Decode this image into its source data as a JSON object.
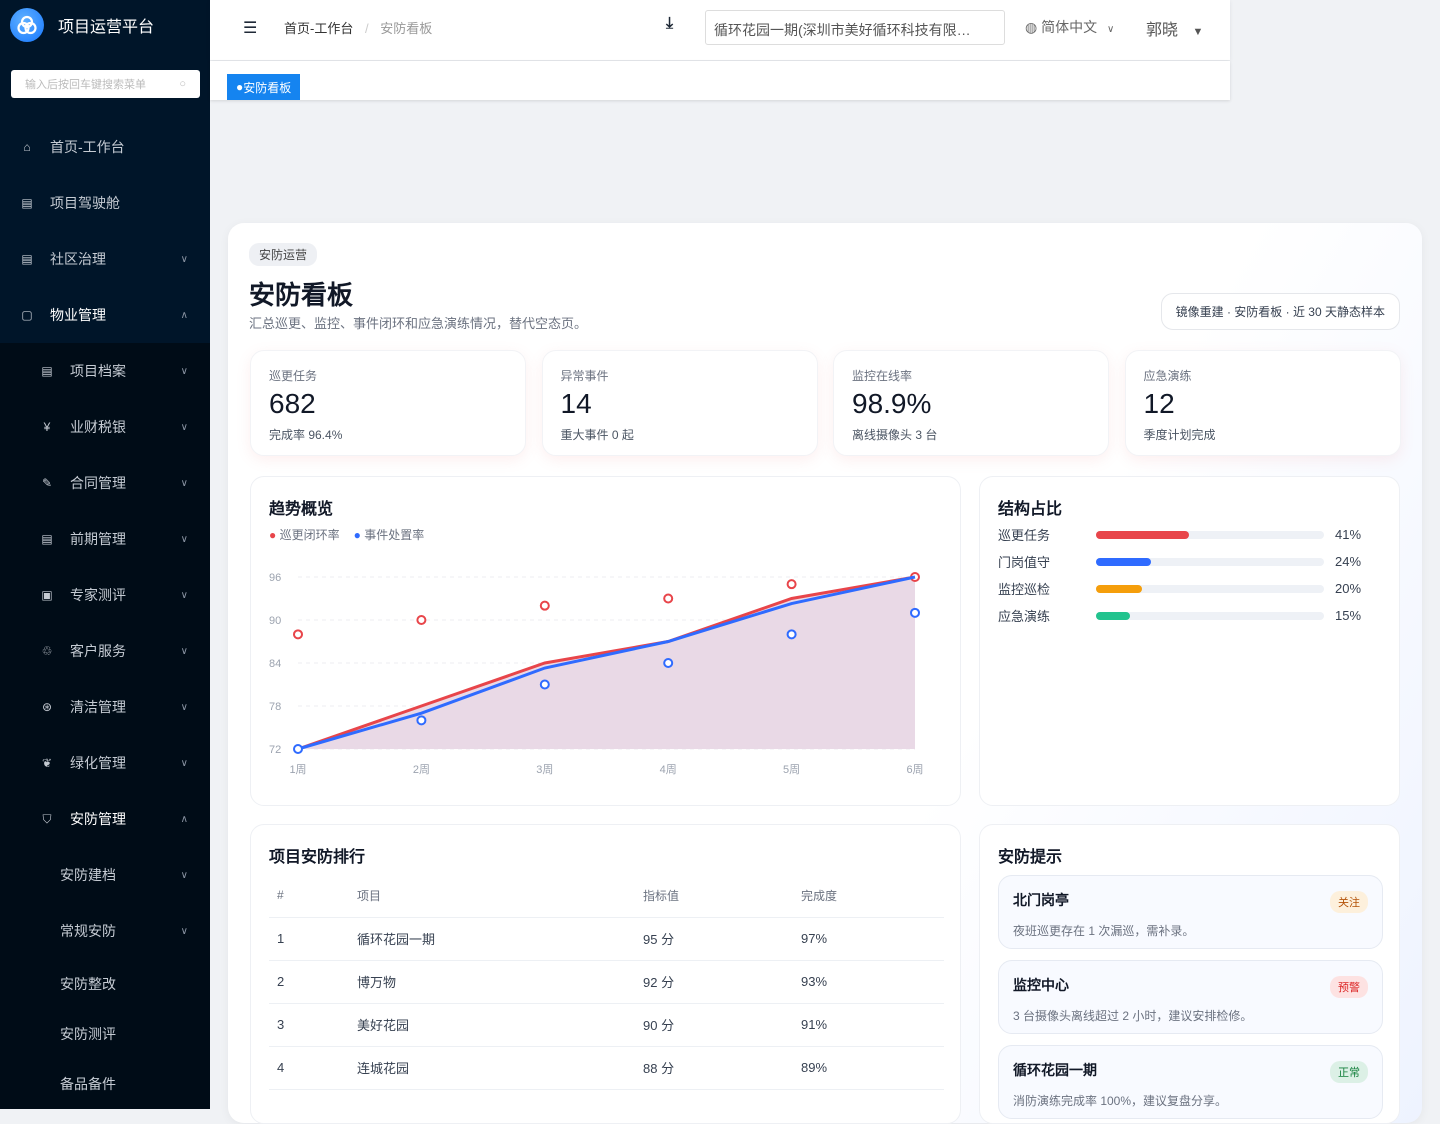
{
  "app": {
    "title": "项目运营平台",
    "search_placeholder": "输入后按回车键搜索菜单"
  },
  "sidebar": {
    "items": [
      {
        "label": "首页-工作台",
        "icon": "home-icon"
      },
      {
        "label": "项目驾驶舱",
        "icon": "dashboard-icon"
      },
      {
        "label": "社区治理",
        "icon": "dashboard-icon",
        "chevron": "down"
      },
      {
        "label": "物业管理",
        "icon": "property-icon",
        "chevron": "up"
      }
    ],
    "sub_items": [
      {
        "label": "项目档案",
        "icon": "file-icon"
      },
      {
        "label": "业财税银",
        "icon": "yuan-icon"
      },
      {
        "label": "合同管理",
        "icon": "contract-icon"
      },
      {
        "label": "前期管理",
        "icon": "file-icon"
      },
      {
        "label": "专家测评",
        "icon": "clipboard-icon"
      },
      {
        "label": "客户服务",
        "icon": "service-icon"
      },
      {
        "label": "清洁管理",
        "icon": "clean-icon"
      },
      {
        "label": "绿化管理",
        "icon": "leaf-icon"
      },
      {
        "label": "安防管理",
        "icon": "shield-icon"
      }
    ],
    "security_items": [
      {
        "label": "安防建档",
        "chevron": true
      },
      {
        "label": "常规安防",
        "chevron": true
      },
      {
        "label": "安防整改"
      },
      {
        "label": "安防测评"
      },
      {
        "label": "备品备件"
      }
    ]
  },
  "header": {
    "breadcrumb": [
      "首页-工作台",
      "安防看板"
    ],
    "project": "循环花园一期(深圳市美好循环科技有限…",
    "language": "简体中文",
    "user": "郭晓"
  },
  "tags": [
    {
      "label": "安防看板"
    }
  ],
  "page": {
    "badge": "安防运营",
    "title": "安防看板",
    "subtitle": "汇总巡更、监控、事件闭环和应急演练情况，替代空态页。",
    "note": "镜像重建 · 安防看板 · 近 30 天静态样本"
  },
  "kpis": [
    {
      "label": "巡更任务",
      "value": "682",
      "sub": "完成率 96.4%"
    },
    {
      "label": "异常事件",
      "value": "14",
      "sub": "重大事件 0 起"
    },
    {
      "label": "监控在线率",
      "value": "98.9%",
      "sub": "离线摄像头 3 台"
    },
    {
      "label": "应急演练",
      "value": "12",
      "sub": "季度计划完成"
    }
  ],
  "chart_data": {
    "type": "line",
    "title": "趋势概览",
    "categories": [
      "1周",
      "2周",
      "3周",
      "4周",
      "5周",
      "6周"
    ],
    "yticks": [
      72,
      78,
      84,
      90,
      96
    ],
    "ylim": [
      72,
      96
    ],
    "grid": true,
    "legend": "top-left",
    "series": [
      {
        "name": "巡更闭环率",
        "color": "#e8454a",
        "line": [
          72,
          78,
          84,
          87,
          93,
          96
        ],
        "points": [
          88,
          90,
          92,
          93,
          95,
          96
        ]
      },
      {
        "name": "事件处置率",
        "color": "#2f6bff",
        "line": [
          72,
          77,
          83.3,
          87,
          92.3,
          96
        ],
        "points": [
          72,
          76,
          81,
          84,
          88,
          91
        ]
      }
    ]
  },
  "structure": {
    "title": "结构占比",
    "items": [
      {
        "label": "巡更任务",
        "pct": "41%",
        "value": 41,
        "color": "#e8454a"
      },
      {
        "label": "门岗值守",
        "pct": "24%",
        "value": 24,
        "color": "#2f6bff"
      },
      {
        "label": "监控巡检",
        "pct": "20%",
        "value": 20,
        "color": "#f59e0b"
      },
      {
        "label": "应急演练",
        "pct": "15%",
        "value": 15,
        "color": "#22c38e"
      }
    ]
  },
  "ranking": {
    "title": "项目安防排行",
    "columns": [
      "#",
      "项目",
      "指标值",
      "完成度"
    ],
    "rows": [
      [
        "1",
        "循环花园一期",
        "95 分",
        "97%"
      ],
      [
        "2",
        "博万物",
        "92 分",
        "93%"
      ],
      [
        "3",
        "美好花园",
        "90 分",
        "91%"
      ],
      [
        "4",
        "连城花园",
        "88 分",
        "89%"
      ]
    ]
  },
  "tips": {
    "title": "安防提示",
    "items": [
      {
        "title": "北门岗亭",
        "desc": "夜班巡更存在 1 次漏巡，需补录。",
        "badge": "关注",
        "bg": "#fdf0dc",
        "fg": "#b45309"
      },
      {
        "title": "监控中心",
        "desc": "3 台摄像头离线超过 2 小时，建议安排检修。",
        "badge": "预警",
        "bg": "#fde2e2",
        "fg": "#dc2626"
      },
      {
        "title": "循环花园一期",
        "desc": "消防演练完成率 100%，建议复盘分享。",
        "badge": "正常",
        "bg": "#dcf0e6",
        "fg": "#15803d"
      }
    ]
  }
}
